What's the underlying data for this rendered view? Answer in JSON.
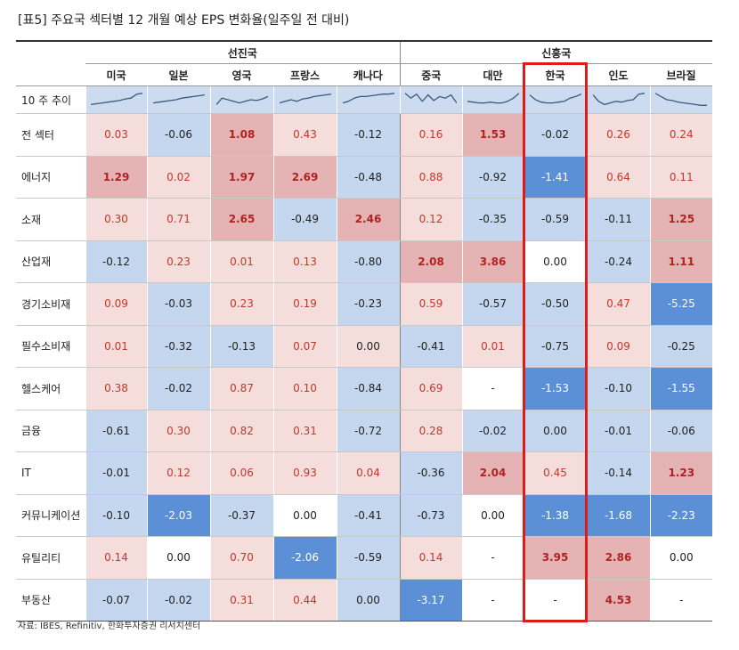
{
  "title": "[표5]   주요국 섹터별 12 개월 예상 EPS 변화율(일주일 전 대비)",
  "source": "자료: IBES, Refinitiv, 한화투자증권 리서치센터",
  "groups": {
    "developed": "선진국",
    "emerging": "신흥국"
  },
  "countries": [
    "미국",
    "일본",
    "영국",
    "프랑스",
    "캐나다",
    "중국",
    "대만",
    "한국",
    "인도",
    "브라질"
  ],
  "trend_label": "10 주 추이",
  "colors": {
    "strong_pos": "#e5b3b3",
    "weak_pos": "#f5dddb",
    "weak_neg": "#c4d7ef",
    "strong_neg": "#5b8fd6",
    "trend_bg_dev": "#ccdbef",
    "highlight": "#e01919"
  },
  "rows": [
    {
      "label": "전 섹터",
      "values": [
        "0.03",
        "-0.06",
        "1.08",
        "0.43",
        "-0.12",
        "0.16",
        "1.53",
        "-0.02",
        "0.26",
        "0.24"
      ]
    },
    {
      "label": "에너지",
      "values": [
        "1.29",
        "0.02",
        "1.97",
        "2.69",
        "-0.48",
        "0.88",
        "-0.92",
        "-1.41",
        "0.64",
        "0.11"
      ]
    },
    {
      "label": "소재",
      "values": [
        "0.30",
        "0.71",
        "2.65",
        "-0.49",
        "2.46",
        "0.12",
        "-0.35",
        "-0.59",
        "-0.11",
        "1.25"
      ]
    },
    {
      "label": "산업재",
      "values": [
        "-0.12",
        "0.23",
        "0.01",
        "0.13",
        "-0.80",
        "2.08",
        "3.86",
        "0.00",
        "-0.24",
        "1.11"
      ]
    },
    {
      "label": "경기소비재",
      "values": [
        "0.09",
        "-0.03",
        "0.23",
        "0.19",
        "-0.23",
        "0.59",
        "-0.57",
        "-0.50",
        "0.47",
        "-5.25"
      ]
    },
    {
      "label": "필수소비재",
      "values": [
        "0.01",
        "-0.32",
        "-0.13",
        "0.07",
        "0.00",
        "-0.41",
        "0.01",
        "-0.75",
        "0.09",
        "-0.25"
      ]
    },
    {
      "label": "헬스케어",
      "values": [
        "0.38",
        "-0.02",
        "0.87",
        "0.10",
        "-0.84",
        "0.69",
        "-",
        "-1.53",
        "-0.10",
        "-1.55"
      ]
    },
    {
      "label": "금융",
      "values": [
        "-0.61",
        "0.30",
        "0.82",
        "0.31",
        "-0.72",
        "0.28",
        "-0.02",
        "0.00",
        "-0.01",
        "-0.06"
      ]
    },
    {
      "label": "IT",
      "values": [
        "-0.01",
        "0.12",
        "0.06",
        "0.93",
        "0.04",
        "-0.36",
        "2.04",
        "0.45",
        "-0.14",
        "1.23"
      ]
    },
    {
      "label": "커뮤니케이션",
      "values": [
        "-0.10",
        "-2.03",
        "-0.37",
        "0.00",
        "-0.41",
        "-0.73",
        "0.00",
        "-1.38",
        "-1.68",
        "-2.23"
      ]
    },
    {
      "label": "유틸리티",
      "values": [
        "0.14",
        "0.00",
        "0.70",
        "-2.06",
        "-0.59",
        "0.14",
        "-",
        "3.95",
        "2.86",
        "0.00"
      ]
    },
    {
      "label": "부동산",
      "values": [
        "-0.07",
        "-0.02",
        "0.31",
        "0.44",
        "0.00",
        "-3.17",
        "-",
        "-",
        "4.53",
        "-"
      ]
    }
  ],
  "cell_styles": [
    [
      "wp",
      "wn",
      "sp",
      "wp",
      "wn",
      "wp",
      "sp",
      "wn",
      "wp",
      "wp"
    ],
    [
      "sp",
      "wp",
      "sp",
      "sp",
      "wn",
      "wp",
      "wn",
      "sn",
      "wp",
      "wp"
    ],
    [
      "wp",
      "wp",
      "sp",
      "wn",
      "sp",
      "wp",
      "wn",
      "wn",
      "wn",
      "sp"
    ],
    [
      "wn",
      "wp",
      "wp",
      "wp",
      "wn",
      "sp",
      "sp",
      "w",
      "wn",
      "sp"
    ],
    [
      "wp",
      "wn",
      "wp",
      "wp",
      "wn",
      "wp",
      "wn",
      "wn",
      "wp",
      "sn"
    ],
    [
      "wp",
      "wn",
      "wn",
      "wp",
      "wp",
      "wn",
      "wp",
      "wn",
      "wp",
      "wn"
    ],
    [
      "wp",
      "wn",
      "wp",
      "wp",
      "wn",
      "wp",
      "w",
      "sn",
      "wn",
      "sn"
    ],
    [
      "wn",
      "wp",
      "wp",
      "wp",
      "wn",
      "wp",
      "wn",
      "wn",
      "wn",
      "wn"
    ],
    [
      "wn",
      "wp",
      "wp",
      "wp",
      "wp",
      "wn",
      "sp",
      "wp",
      "wn",
      "sp"
    ],
    [
      "wn",
      "sn",
      "wn",
      "w",
      "wn",
      "wn",
      "w",
      "sn",
      "sn",
      "sn"
    ],
    [
      "wp",
      "w",
      "wp",
      "sn",
      "wn",
      "wp",
      "w",
      "sp",
      "sp",
      "w"
    ],
    [
      "wn",
      "wn",
      "wp",
      "wp",
      "wn",
      "sn",
      "w",
      "w",
      "sp",
      "w"
    ]
  ],
  "sparklines": [
    [
      0.2,
      0.25,
      0.3,
      0.35,
      0.4,
      0.45,
      0.55,
      0.6,
      0.85,
      0.9
    ],
    [
      0.3,
      0.35,
      0.4,
      0.45,
      0.5,
      0.6,
      0.65,
      0.7,
      0.75,
      0.8
    ],
    [
      0.2,
      0.6,
      0.5,
      0.4,
      0.3,
      0.4,
      0.5,
      0.45,
      0.55,
      0.7
    ],
    [
      0.3,
      0.4,
      0.5,
      0.4,
      0.55,
      0.6,
      0.7,
      0.75,
      0.8,
      0.85
    ],
    [
      0.3,
      0.4,
      0.6,
      0.7,
      0.7,
      0.75,
      0.8,
      0.85,
      0.85,
      0.9
    ],
    [
      0.9,
      0.6,
      0.85,
      0.4,
      0.8,
      0.45,
      0.7,
      0.6,
      0.8,
      0.3
    ],
    [
      0.4,
      0.35,
      0.3,
      0.3,
      0.35,
      0.3,
      0.3,
      0.4,
      0.6,
      0.9
    ],
    [
      0.8,
      0.5,
      0.35,
      0.3,
      0.3,
      0.35,
      0.4,
      0.6,
      0.7,
      0.85
    ],
    [
      0.8,
      0.4,
      0.2,
      0.3,
      0.4,
      0.35,
      0.45,
      0.5,
      0.85,
      0.9
    ],
    [
      0.9,
      0.7,
      0.5,
      0.45,
      0.35,
      0.3,
      0.25,
      0.2,
      0.15,
      0.15
    ]
  ]
}
